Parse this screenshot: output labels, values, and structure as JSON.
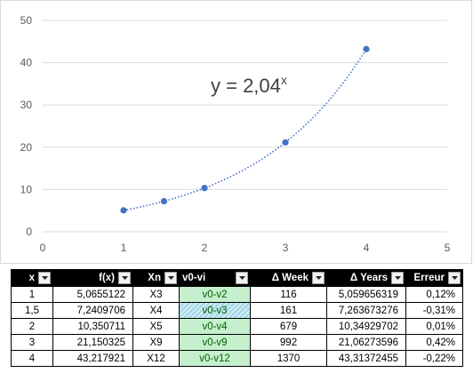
{
  "chart_data": {
    "type": "scatter",
    "x": [
      1,
      1.5,
      2,
      3,
      4
    ],
    "y": [
      5.0655122,
      7.2409706,
      10.350711,
      21.150325,
      43.217921
    ],
    "trendline": {
      "style": "dotted",
      "type": "exponential",
      "base": 2.04
    },
    "equation": {
      "prefix": "y = 2,04",
      "exponent": "x"
    },
    "xlim": [
      0,
      5
    ],
    "ylim": [
      0,
      50
    ],
    "x_ticks": [
      0,
      1,
      2,
      3,
      4,
      5
    ],
    "y_ticks": [
      0,
      10,
      20,
      30,
      40,
      50
    ],
    "grid": "horizontal",
    "colors": {
      "marker": "#4472c4",
      "grid": "#d9d9d9",
      "axis_text": "#595959"
    }
  },
  "table": {
    "headers": [
      "x",
      "f(x)",
      "Xn",
      "v0-vi",
      "Δ Week",
      "Δ Years",
      "Erreur"
    ],
    "rows": [
      [
        "1",
        "5,0655122",
        "X3",
        "v0-v2",
        "116",
        "5,059656319",
        "0,12%"
      ],
      [
        "1,5",
        "7,2409706",
        "X4",
        "v0-v3",
        "161",
        "7,263673276",
        "-0,31%"
      ],
      [
        "2",
        "10,350711",
        "X5",
        "v0-v4",
        "679",
        "10,34929702",
        "0,01%"
      ],
      [
        "3",
        "21,150325",
        "X9",
        "v0-v9",
        "992",
        "21,06273596",
        "0,42%"
      ],
      [
        "4",
        "43,217921",
        "X12",
        "v0-v12",
        "1370",
        "43,31372455",
        "-0,22%"
      ]
    ],
    "selected_cell": {
      "row": 1,
      "col": 3
    }
  }
}
